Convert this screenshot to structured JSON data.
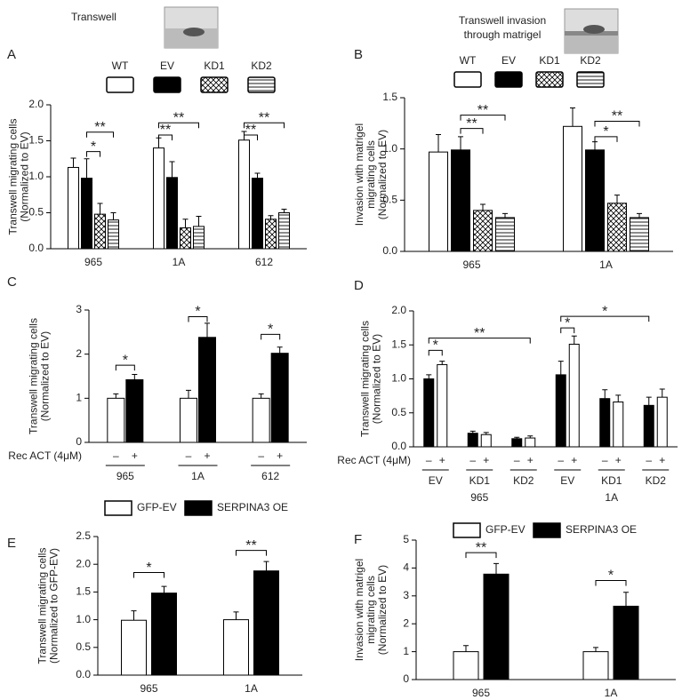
{
  "chart_data": [
    {
      "type": "bar",
      "panel": "A",
      "title": [
        "Transwell"
      ],
      "ylabel": [
        "Transwell migrating cells",
        "(Normalized to EV)"
      ],
      "categories": [
        "965",
        "1A",
        "612"
      ],
      "series": [
        {
          "name": "WT",
          "color": "#ffffff",
          "values": [
            1.13,
            1.4,
            1.51
          ],
          "errors": [
            0.13,
            0.14,
            0.12
          ]
        },
        {
          "name": "EV",
          "color": "#000000",
          "values": [
            0.98,
            0.99,
            0.98
          ],
          "errors": [
            0.27,
            0.22,
            0.07
          ]
        },
        {
          "name": "KD1",
          "color": "#ffffff",
          "pattern": "crosshatch",
          "values": [
            0.48,
            0.29,
            0.41
          ],
          "errors": [
            0.15,
            0.12,
            0.05
          ]
        },
        {
          "name": "KD2",
          "color": "#ffffff",
          "pattern": "hlines",
          "values": [
            0.4,
            0.31,
            0.5
          ],
          "errors": [
            0.1,
            0.14,
            0.05
          ]
        }
      ],
      "ylim": [
        0,
        2.0
      ],
      "yticks": [
        {
          "value": 0,
          "label": "0.0"
        },
        {
          "value": 0.5,
          "label": "0.5"
        },
        {
          "value": 1.0,
          "label": "1.0"
        },
        {
          "value": 1.5,
          "label": "1.5"
        },
        {
          "value": 2.0,
          "label": "2.0"
        }
      ],
      "legend": "top",
      "annotations": [
        "*",
        "**",
        "**",
        "**",
        "**",
        "**"
      ]
    },
    {
      "type": "bar",
      "panel": "B",
      "title": [
        "Transwell invasion",
        "through matrigel"
      ],
      "ylabel": [
        "Invasion with matrigel",
        "migrating cells",
        "(Normalized to EV)"
      ],
      "categories": [
        "965",
        "1A"
      ],
      "series": [
        {
          "name": "WT",
          "color": "#ffffff",
          "values": [
            0.97,
            1.22
          ],
          "errors": [
            0.17,
            0.18
          ]
        },
        {
          "name": "EV",
          "color": "#000000",
          "values": [
            0.99,
            0.99
          ],
          "errors": [
            0.13,
            0.08
          ]
        },
        {
          "name": "KD1",
          "color": "#ffffff",
          "pattern": "crosshatch",
          "values": [
            0.4,
            0.47
          ],
          "errors": [
            0.06,
            0.08
          ]
        },
        {
          "name": "KD2",
          "color": "#ffffff",
          "pattern": "hlines",
          "values": [
            0.33,
            0.33
          ],
          "errors": [
            0.04,
            0.04
          ]
        }
      ],
      "ylim": [
        0,
        1.5
      ],
      "yticks": [
        {
          "value": 0,
          "label": "0.0"
        },
        {
          "value": 0.5,
          "label": "0.5"
        },
        {
          "value": 1.0,
          "label": "1.0"
        },
        {
          "value": 1.5,
          "label": "1.5"
        }
      ],
      "legend": "top",
      "annotations": [
        "**",
        "**",
        "*",
        "**"
      ]
    },
    {
      "type": "bar",
      "panel": "C",
      "ylabel": [
        "Transwell migrating cells",
        "(Normalized to EV)"
      ],
      "categories": [
        "965",
        "1A",
        "612"
      ],
      "x_row_label": "Rec ACT (4μM)",
      "series": [
        {
          "name": "–",
          "color": "#ffffff",
          "values": [
            1.0,
            1.0,
            1.0
          ],
          "errors": [
            0.1,
            0.18,
            0.1
          ]
        },
        {
          "name": "+",
          "color": "#000000",
          "values": [
            1.42,
            2.38,
            2.02
          ],
          "errors": [
            0.12,
            0.32,
            0.14
          ]
        }
      ],
      "ylim": [
        0,
        3
      ],
      "yticks": [
        0,
        1,
        2,
        3
      ],
      "legend": "none",
      "annotations": [
        "*",
        "*",
        "*"
      ]
    },
    {
      "type": "bar",
      "panel": "D",
      "ylabel": [
        "Transwell migrating cells",
        "(Normalized to EV)"
      ],
      "categories": [
        "EV",
        "KD1",
        "KD2",
        "EV",
        "KD1",
        "KD2"
      ],
      "groups": [
        "965",
        "1A"
      ],
      "x_row_label": "Rec ACT (4μM)",
      "series": [
        {
          "name": "–",
          "color": "#000000",
          "values": [
            1.0,
            0.2,
            0.12,
            1.06,
            0.71,
            0.61
          ],
          "errors": [
            0.06,
            0.03,
            0.02,
            0.2,
            0.13,
            0.12
          ]
        },
        {
          "name": "+",
          "color": "#ffffff",
          "values": [
            1.21,
            0.18,
            0.13,
            1.51,
            0.66,
            0.73
          ],
          "errors": [
            0.05,
            0.03,
            0.03,
            0.12,
            0.1,
            0.12
          ]
        }
      ],
      "ylim": [
        0,
        2.0
      ],
      "yticks": [
        {
          "value": 0,
          "label": "0.0"
        },
        {
          "value": 0.5,
          "label": "0.5"
        },
        {
          "value": 1.0,
          "label": "1.0"
        },
        {
          "value": 1.5,
          "label": "1.5"
        },
        {
          "value": 2.0,
          "label": "2.0"
        }
      ],
      "legend": "none",
      "annotations": [
        "*",
        "**",
        "*",
        "*"
      ]
    },
    {
      "type": "bar",
      "panel": "E",
      "ylabel": [
        "Transwell migrating cells",
        "(Normalized to GFP-EV)"
      ],
      "categories": [
        "965",
        "1A"
      ],
      "series": [
        {
          "name": "GFP-EV",
          "color": "#ffffff",
          "values": [
            0.99,
            1.0
          ],
          "errors": [
            0.17,
            0.14
          ]
        },
        {
          "name": "SERPINA3 OE",
          "color": "#000000",
          "values": [
            1.48,
            1.88
          ],
          "errors": [
            0.12,
            0.17
          ]
        }
      ],
      "ylim": [
        0,
        2.5
      ],
      "yticks": [
        {
          "value": 0,
          "label": "0.0"
        },
        {
          "value": 0.5,
          "label": "0.5"
        },
        {
          "value": 1.0,
          "label": "1.0"
        },
        {
          "value": 1.5,
          "label": "1.5"
        },
        {
          "value": 2.0,
          "label": "2.0"
        },
        {
          "value": 2.5,
          "label": "2.5"
        }
      ],
      "legend": "top-left",
      "annotations": [
        "*",
        "**"
      ]
    },
    {
      "type": "bar",
      "panel": "F",
      "ylabel": [
        "Invasion with matrigel",
        "migrating cells",
        "(Normalized to EV)"
      ],
      "categories": [
        "965",
        "1A"
      ],
      "series": [
        {
          "name": "GFP-EV",
          "color": "#ffffff",
          "values": [
            1.0,
            1.0
          ],
          "errors": [
            0.22,
            0.15
          ]
        },
        {
          "name": "SERPINA3 OE",
          "color": "#000000",
          "values": [
            3.78,
            2.63
          ],
          "errors": [
            0.38,
            0.5
          ]
        }
      ],
      "ylim": [
        0,
        5
      ],
      "yticks": [
        0,
        1,
        2,
        3,
        4,
        5
      ],
      "legend": "top-left",
      "annotations": [
        "**",
        "*"
      ]
    }
  ]
}
